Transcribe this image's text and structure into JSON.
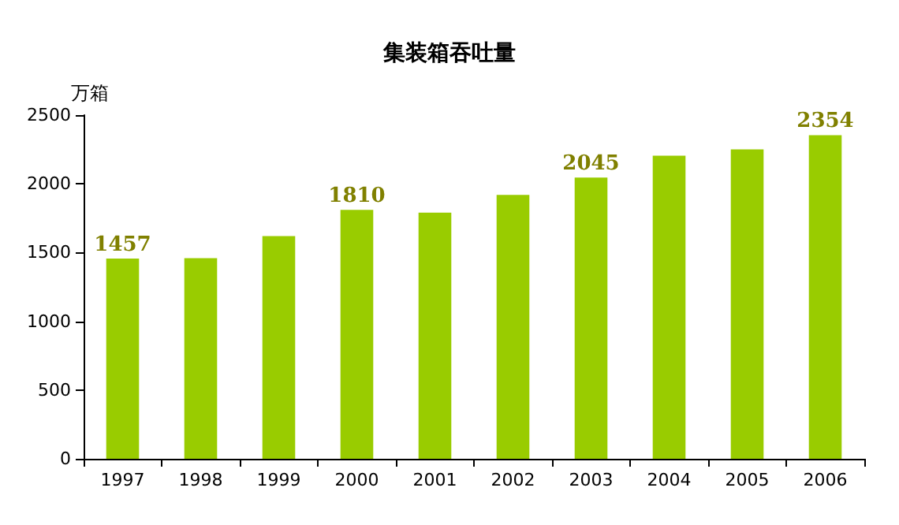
{
  "chart_data": {
    "type": "bar",
    "title": "集装箱吞吐量",
    "ylabel": "万箱",
    "categories": [
      "1997",
      "1998",
      "1999",
      "2000",
      "2001",
      "2002",
      "2003",
      "2004",
      "2005",
      "2006"
    ],
    "values": [
      1457,
      1460,
      1620,
      1810,
      1790,
      1920,
      2045,
      2205,
      2250,
      2354
    ],
    "value_labels": [
      "1457",
      null,
      null,
      "1810",
      null,
      null,
      "2045",
      null,
      null,
      "2354"
    ],
    "color": "#99cc00",
    "ylim": [
      0,
      2500
    ],
    "yticks": [
      0,
      500,
      1000,
      1500,
      2000,
      2500
    ],
    "grid": false
  }
}
